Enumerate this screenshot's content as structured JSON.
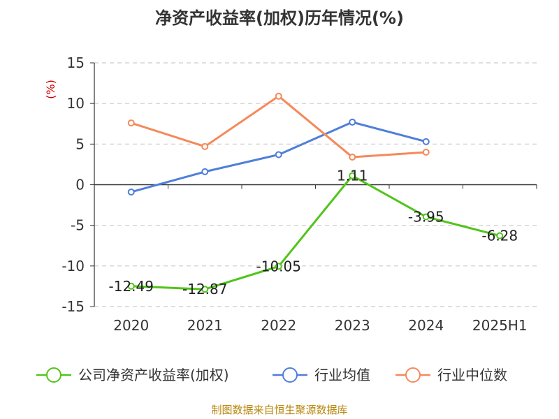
{
  "title": "净资产收益率(加权)历年情况(%)",
  "source": "制图数据来自恒生聚源数据库",
  "chart_data": {
    "type": "line",
    "title": "净资产收益率(加权)历年情况(%)",
    "ylabel": "(%)",
    "categories": [
      "2020",
      "2021",
      "2022",
      "2023",
      "2024",
      "2025H1"
    ],
    "ylim": [
      -15,
      15
    ],
    "yticks": [
      15,
      10,
      5,
      0,
      -5,
      -10,
      -15
    ],
    "grid": "horizontal-dashed",
    "legend_position": "bottom",
    "series": [
      {
        "name": "公司净资产收益率(加权)",
        "color": "#52c41a",
        "values": [
          -12.49,
          -12.87,
          -10.05,
          1.11,
          -3.95,
          -6.28
        ],
        "labels": [
          "-12.49",
          "-12.87",
          "-10.05",
          "1.11",
          "-3.95",
          "-6.28"
        ]
      },
      {
        "name": "行业均值",
        "color": "#4f7fd9",
        "values": [
          -0.9,
          1.6,
          3.7,
          7.7,
          5.3,
          null
        ]
      },
      {
        "name": "行业中位数",
        "color": "#f5895a",
        "values": [
          7.6,
          4.7,
          10.9,
          3.4,
          4.0,
          null
        ]
      }
    ]
  }
}
